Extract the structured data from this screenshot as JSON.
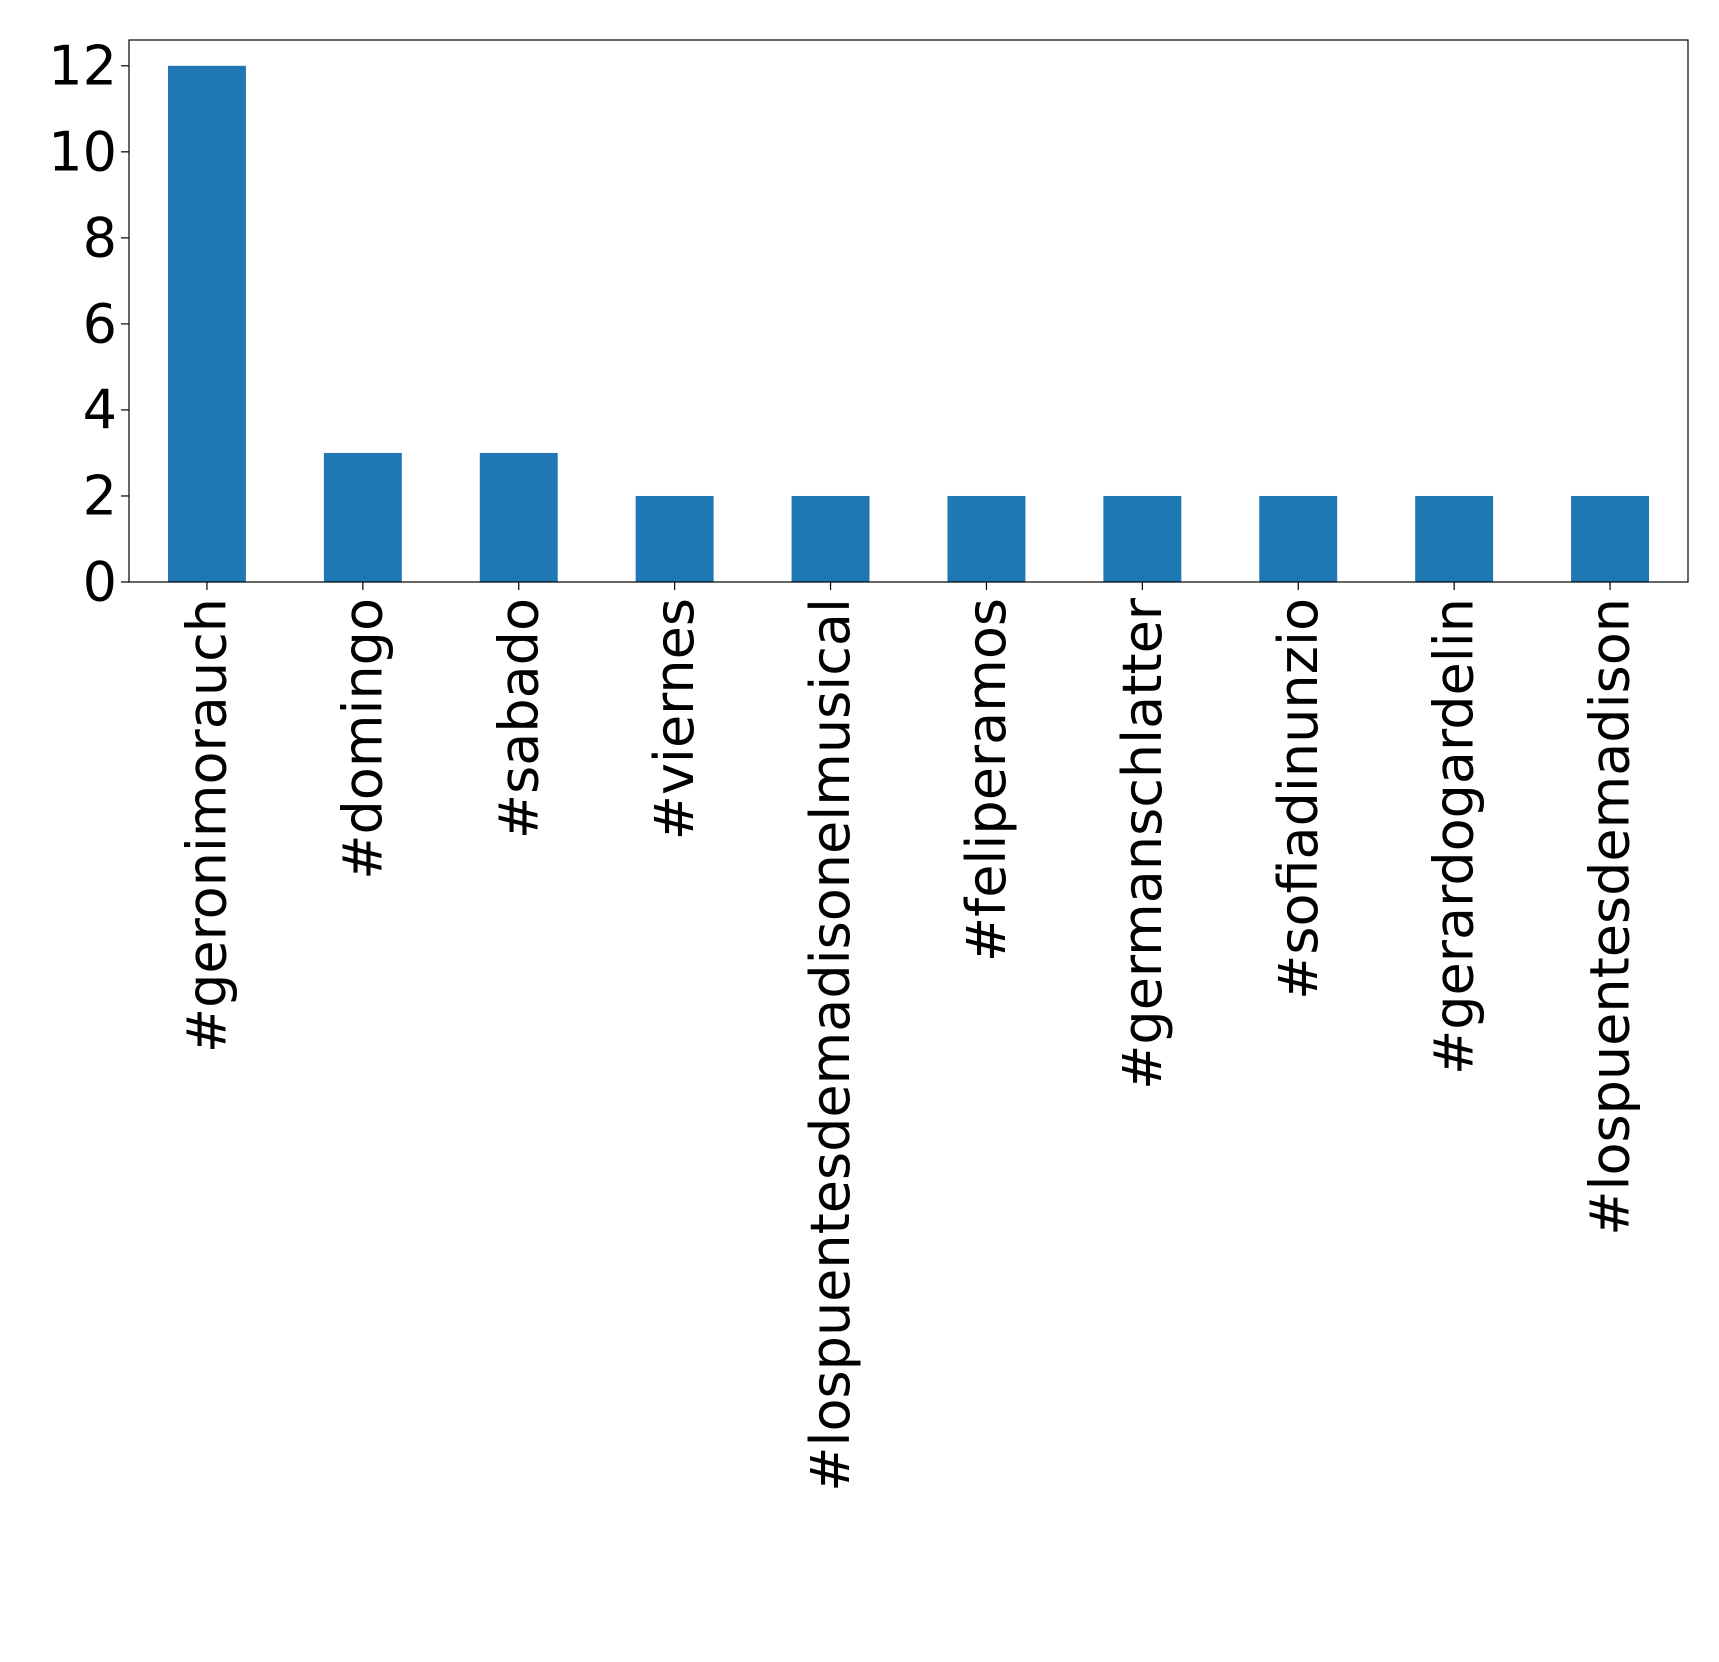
{
  "chart_data": {
    "type": "bar",
    "title": "",
    "xlabel": "",
    "ylabel": "",
    "categories": [
      "#geronimorauch",
      "#domingo",
      "#sabado",
      "#viernes",
      "#lospuentesdemadisonelmusical",
      "#feliperamos",
      "#germanschlatter",
      "#sofiadinunzio",
      "#gerardogardelin",
      "#lospuentesdemadison"
    ],
    "values": [
      12,
      3,
      3,
      2,
      2,
      2,
      2,
      2,
      2,
      2
    ],
    "ylim": [
      0,
      12.6
    ],
    "yticks": [
      0,
      2,
      4,
      6,
      8,
      10,
      12
    ],
    "bar_color": "#1f77b4",
    "grid": false,
    "legend": "none"
  }
}
